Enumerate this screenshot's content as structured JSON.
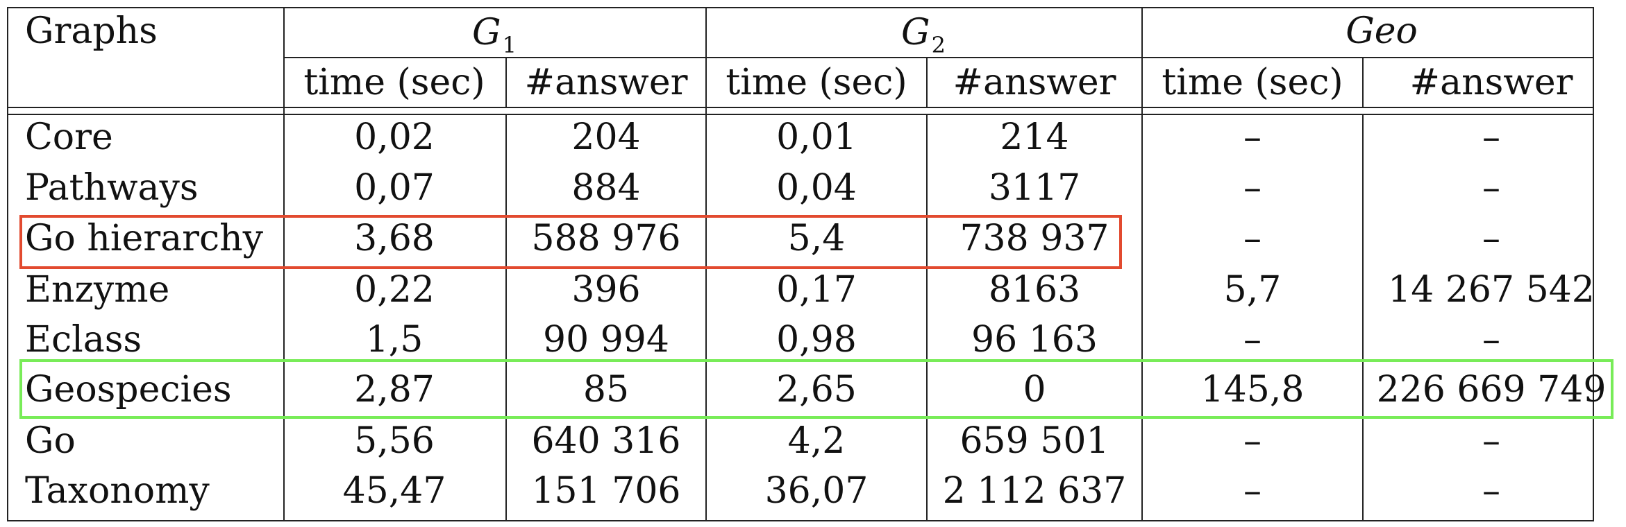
{
  "table": {
    "row_header": "Graphs",
    "groups": [
      {
        "name": "G",
        "sub": "1"
      },
      {
        "name": "G",
        "sub": "2"
      },
      {
        "name": "Geo",
        "sub": ""
      }
    ],
    "subheaders": [
      "time (sec)",
      "#answer",
      "time (sec)",
      "#answer",
      "time (sec)",
      "#answer"
    ],
    "rows": [
      {
        "label": "Core",
        "cells": [
          "0,02",
          "204",
          "0,01",
          "214",
          "–",
          "–"
        ]
      },
      {
        "label": "Pathways",
        "cells": [
          "0,07",
          "884",
          "0,04",
          "3117",
          "–",
          "–"
        ]
      },
      {
        "label": "Go hierarchy",
        "cells": [
          "3,68",
          "588 976",
          "5,4",
          "738 937",
          "–",
          "–"
        ]
      },
      {
        "label": "Enzyme",
        "cells": [
          "0,22",
          "396",
          "0,17",
          "8163",
          "5,7",
          "14 267 542"
        ]
      },
      {
        "label": "Eclass",
        "cells": [
          "1,5",
          "90 994",
          "0,98",
          "96 163",
          "–",
          "–"
        ]
      },
      {
        "label": "Geospecies",
        "cells": [
          "2,87",
          "85",
          "2,65",
          "0",
          "145,8",
          "226 669 749"
        ]
      },
      {
        "label": "Go",
        "cells": [
          "5,56",
          "640 316",
          "4,2",
          "659 501",
          "–",
          "–"
        ]
      },
      {
        "label": "Taxonomy",
        "cells": [
          "45,47",
          "151 706",
          "36,07",
          "2 112 637",
          "–",
          "–"
        ]
      }
    ]
  },
  "highlights": {
    "red_color": "#e24a2f",
    "green_color": "#78ec58",
    "red_row": "Go hierarchy",
    "green_row": "Geospecies"
  }
}
